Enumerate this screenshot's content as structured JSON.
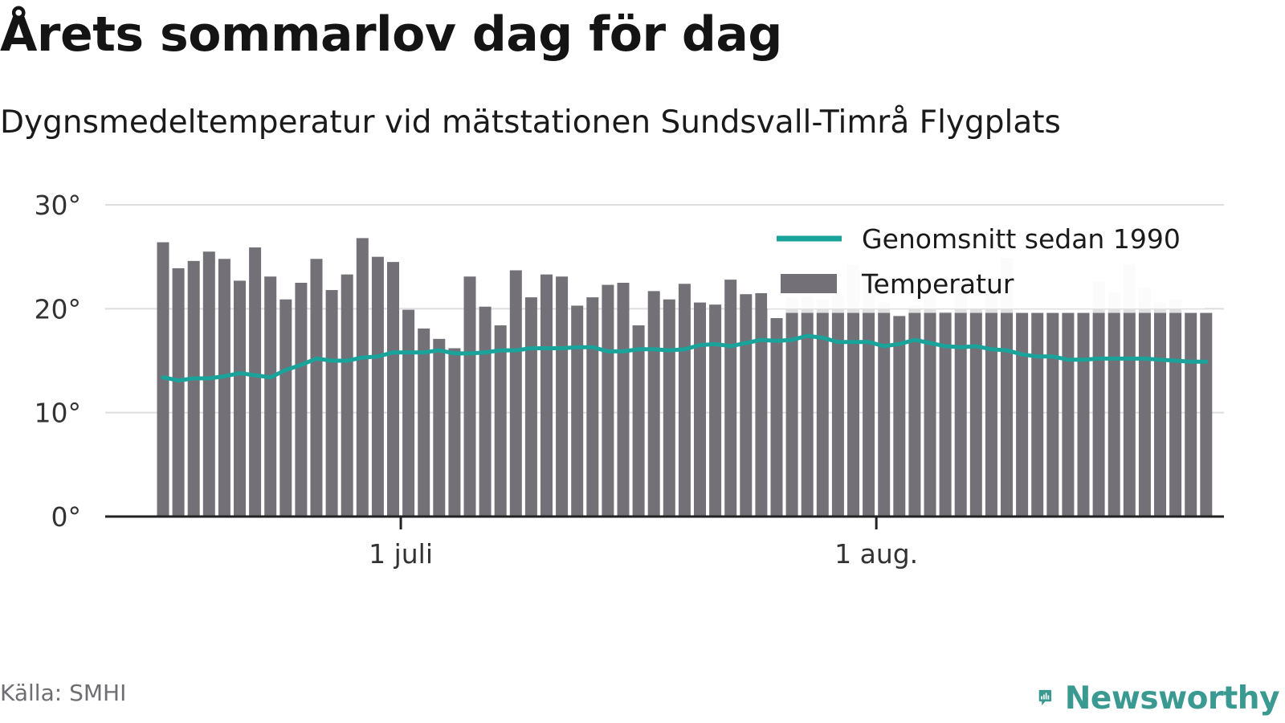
{
  "title": "Årets sommarlov dag för dag",
  "subtitle": "Dygnsmedeltemperatur vid mätstationen Sundsvall-Timrå Flygplats",
  "source": "Källa: SMHI",
  "brand": "Newsworthy",
  "colors": {
    "bar": "#737177",
    "bar_faded": "#e0e0e0",
    "average_line": "#19a39a",
    "grid": "#dedede",
    "axis": "#222222",
    "brand": "#3a9990"
  },
  "chart_data": {
    "type": "bar",
    "ylim": [
      0,
      30
    ],
    "grid": true,
    "legend_position": "top-right",
    "yticks": [
      {
        "value": 0,
        "label": "0°"
      },
      {
        "value": 10,
        "label": "10°"
      },
      {
        "value": 20,
        "label": "20°"
      },
      {
        "value": 30,
        "label": "30°"
      }
    ],
    "xticks": [
      {
        "label": "1 juli",
        "day_index": 16
      },
      {
        "label": "1 aug.",
        "day_index": 47
      }
    ],
    "x_start": "15 juni",
    "legend": [
      {
        "type": "line",
        "label": "Genomsnitt sedan 1990"
      },
      {
        "type": "bar",
        "label": "Temperatur"
      }
    ],
    "series": [
      {
        "name": "Temperatur",
        "type": "bar",
        "values": [
          26.4,
          23.9,
          24.6,
          25.5,
          24.8,
          22.7,
          25.9,
          23.1,
          20.9,
          22.5,
          24.8,
          21.8,
          23.3,
          26.8,
          25.0,
          24.5,
          19.9,
          18.1,
          17.1,
          16.2,
          23.1,
          20.2,
          18.4,
          23.7,
          21.1,
          23.3,
          23.1,
          20.3,
          21.1,
          22.3,
          22.5,
          18.4,
          21.7,
          20.9,
          22.4,
          20.6,
          20.4,
          22.8,
          21.4,
          21.5,
          19.1,
          19.6,
          19.6,
          19.6,
          19.6,
          19.6,
          19.6,
          19.6,
          19.3,
          19.6,
          19.6,
          19.6,
          19.6,
          19.6,
          19.6,
          19.6,
          19.6,
          19.6,
          19.6,
          19.6,
          19.6,
          19.6,
          19.6,
          19.6,
          19.6,
          19.6,
          19.6,
          19.6,
          19.6
        ]
      },
      {
        "type": "bar_faded",
        "values": [
          null,
          null,
          null,
          null,
          null,
          null,
          null,
          null,
          null,
          null,
          null,
          null,
          null,
          null,
          null,
          null,
          null,
          null,
          null,
          null,
          null,
          null,
          null,
          null,
          null,
          null,
          null,
          null,
          null,
          null,
          null,
          null,
          null,
          null,
          null,
          null,
          null,
          null,
          null,
          null,
          19.1,
          21.1,
          21.2,
          20.9,
          21.3,
          24.2,
          23.5,
          20.6,
          19.3,
          20.3,
          21.5,
          19.7,
          22.6,
          20.0,
          21.9,
          24.9,
          null,
          null,
          null,
          null,
          null,
          22.6,
          21.6,
          24.3,
          22.0,
          20.6,
          20.9,
          19.6,
          null
        ]
      },
      {
        "name": "Genomsnitt sedan 1990",
        "type": "line",
        "values": [
          13.4,
          13.1,
          13.3,
          13.3,
          13.5,
          13.8,
          13.6,
          13.4,
          14.1,
          14.6,
          15.2,
          15.0,
          15.0,
          15.3,
          15.4,
          15.8,
          15.8,
          15.8,
          16.0,
          15.7,
          15.7,
          15.8,
          16.0,
          16.0,
          16.2,
          16.2,
          16.2,
          16.3,
          16.3,
          15.9,
          15.9,
          16.1,
          16.1,
          16.0,
          16.1,
          16.5,
          16.6,
          16.4,
          16.7,
          17.0,
          16.9,
          17.0,
          17.4,
          17.2,
          16.8,
          16.8,
          16.8,
          16.4,
          16.6,
          17.0,
          16.7,
          16.4,
          16.3,
          16.4,
          16.1,
          16.0,
          15.6,
          15.4,
          15.4,
          15.1,
          15.1,
          15.2,
          15.2,
          15.2,
          15.2,
          15.1,
          15.0,
          14.9,
          14.9
        ]
      }
    ]
  }
}
